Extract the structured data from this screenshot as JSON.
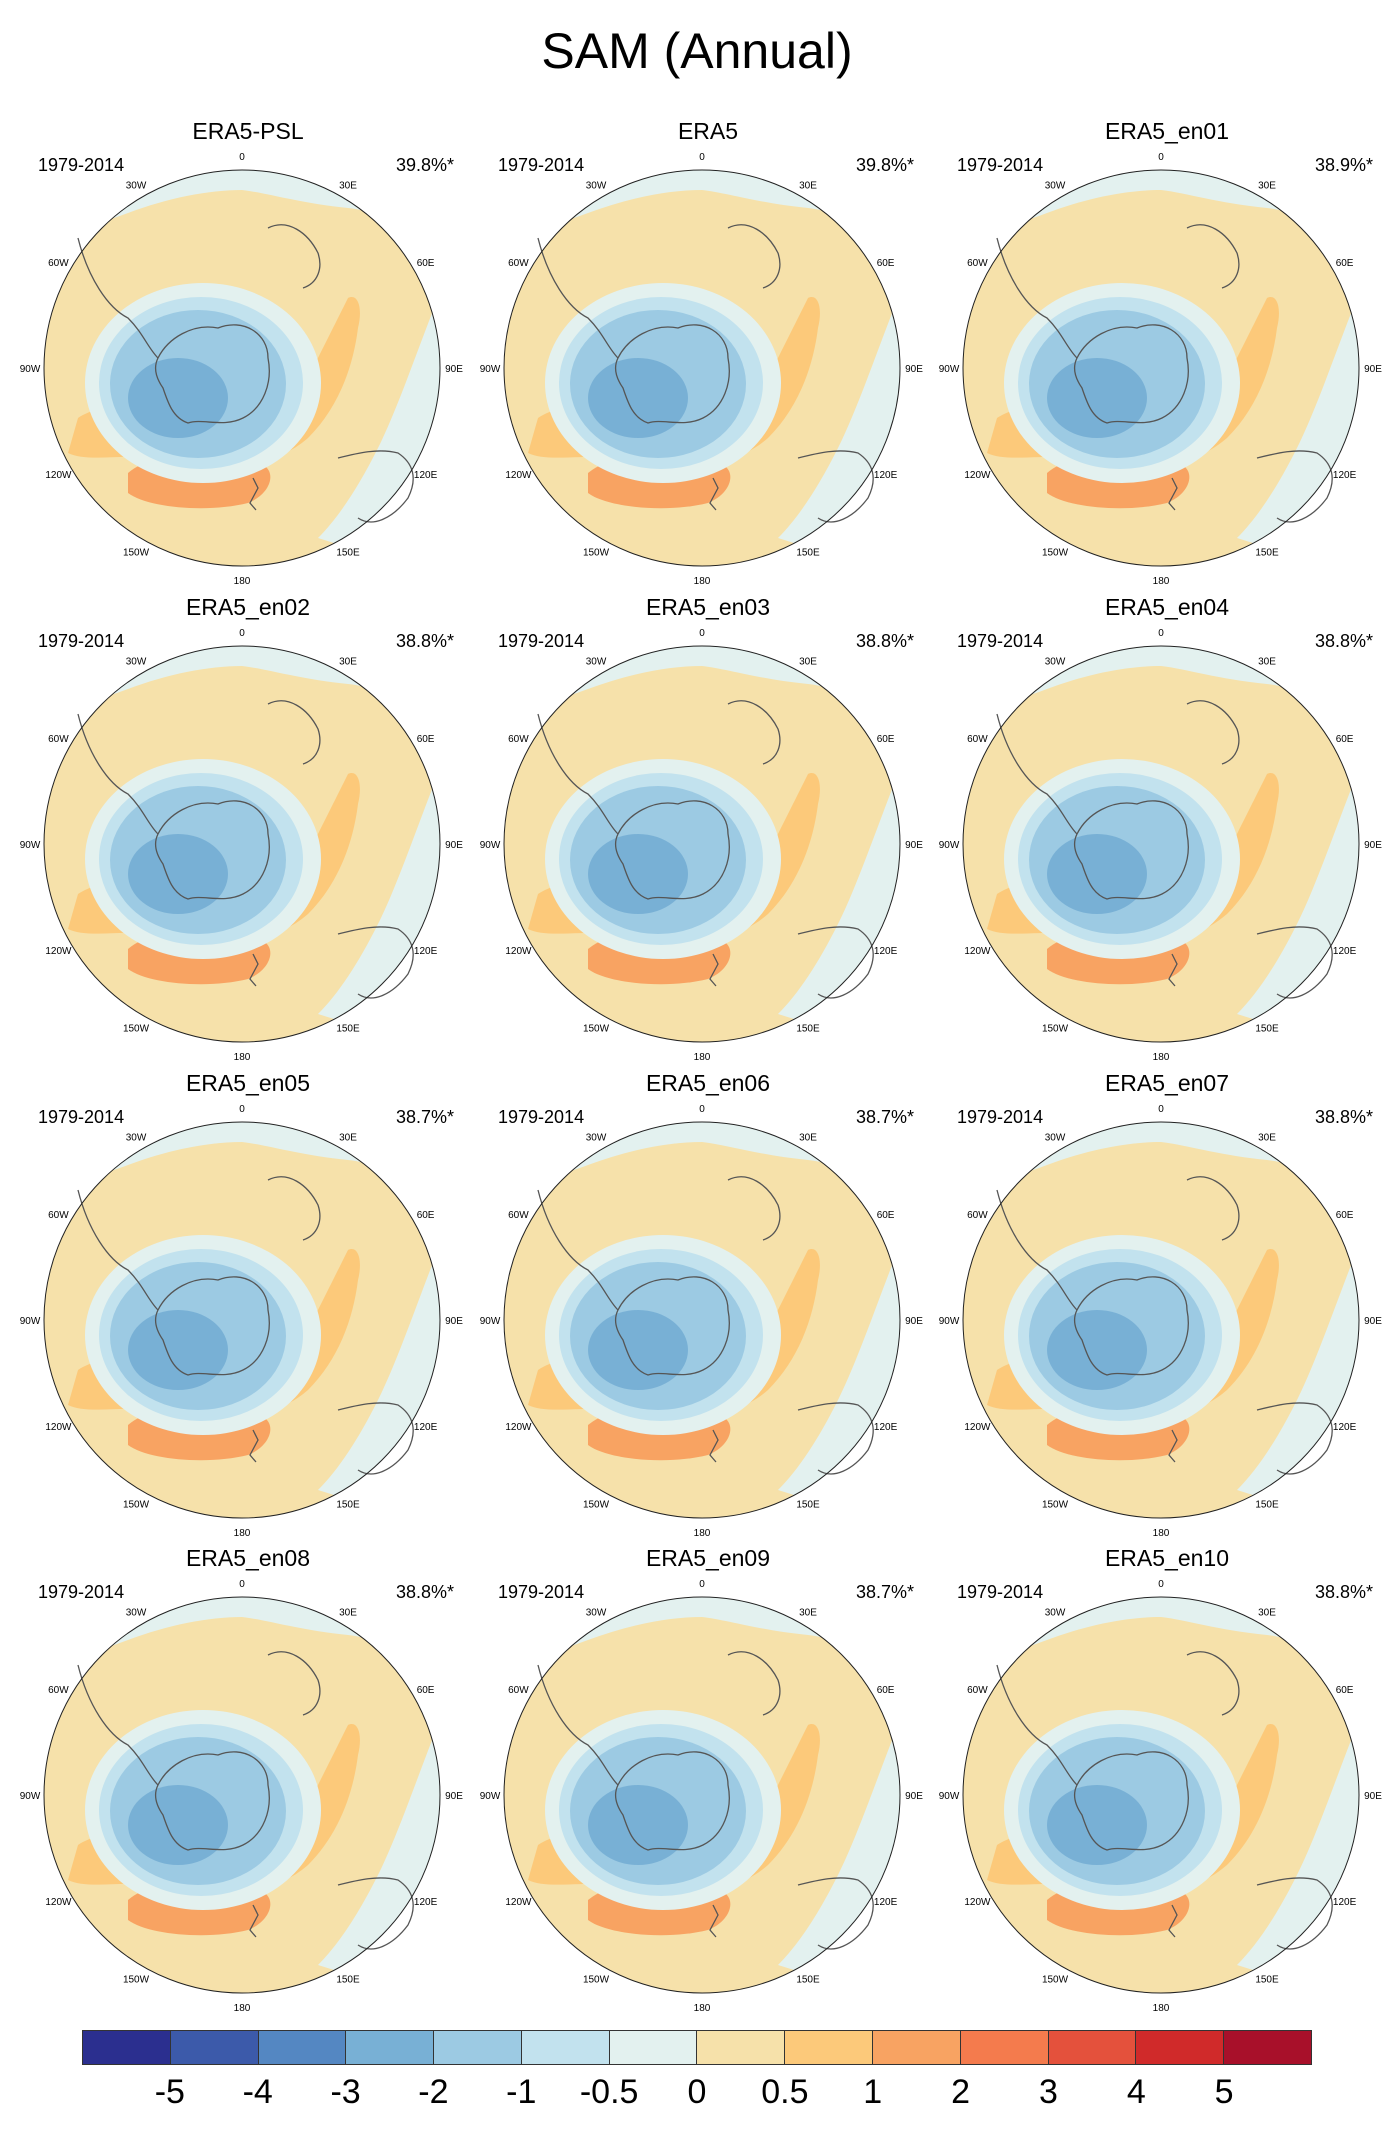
{
  "title": "SAM (Annual)",
  "period": "1979-2014",
  "longitude_labels": [
    "0",
    "30E",
    "60E",
    "90E",
    "120E",
    "150E",
    "180",
    "150W",
    "120W",
    "90W",
    "60W",
    "30W"
  ],
  "panels": [
    {
      "name": "ERA5-PSL",
      "percent": "39.8%*"
    },
    {
      "name": "ERA5",
      "percent": "39.8%*"
    },
    {
      "name": "ERA5_en01",
      "percent": "38.9%*"
    },
    {
      "name": "ERA5_en02",
      "percent": "38.8%*"
    },
    {
      "name": "ERA5_en03",
      "percent": "38.8%*"
    },
    {
      "name": "ERA5_en04",
      "percent": "38.8%*"
    },
    {
      "name": "ERA5_en05",
      "percent": "38.7%*"
    },
    {
      "name": "ERA5_en06",
      "percent": "38.7%*"
    },
    {
      "name": "ERA5_en07",
      "percent": "38.8%*"
    },
    {
      "name": "ERA5_en08",
      "percent": "38.8%*"
    },
    {
      "name": "ERA5_en09",
      "percent": "38.7%*"
    },
    {
      "name": "ERA5_en10",
      "percent": "38.8%*"
    }
  ],
  "colorbar": {
    "colors": [
      "#2b2f8f",
      "#3c5aaa",
      "#5487c2",
      "#78b0d5",
      "#9ccae3",
      "#c2e2ee",
      "#e3f1ef",
      "#f6e1aa",
      "#fcc97a",
      "#f8a362",
      "#f47b4d",
      "#e4513c",
      "#d02a2a",
      "#a8102a"
    ],
    "labels": [
      "-5",
      "-4",
      "-3",
      "-2",
      "-1",
      "-0.5",
      "0",
      "0.5",
      "1",
      "2",
      "3",
      "4",
      "5"
    ]
  },
  "map_colors": {
    "light_blue": "#e3f1ef",
    "pale_blue": "#c2e2ee",
    "mid_blue": "#9ccae3",
    "blue": "#78b0d5",
    "pale_orange": "#f6e1aa",
    "orange": "#fcc97a",
    "dark_orange": "#f8a362",
    "coast": "#555555"
  }
}
